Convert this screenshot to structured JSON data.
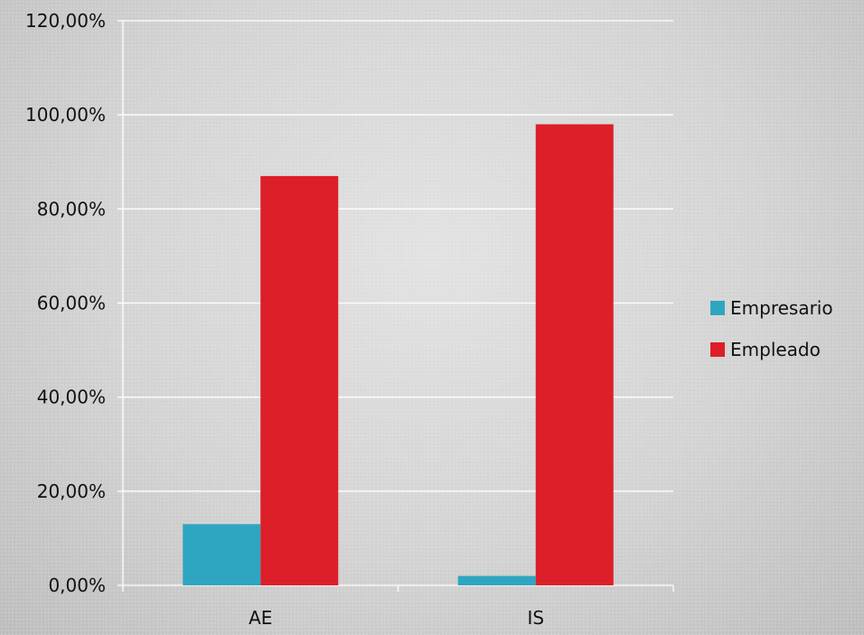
{
  "chart_data": {
    "type": "bar",
    "categories": [
      "AE",
      "IS"
    ],
    "series": [
      {
        "name": "Empresario",
        "values": [
          13.0,
          2.0
        ],
        "color": "#2ea6c2"
      },
      {
        "name": "Empleado",
        "values": [
          87.0,
          98.0
        ],
        "color": "#dc1f28"
      }
    ],
    "ylim": [
      0,
      120
    ],
    "yticks": [
      0,
      20,
      40,
      60,
      80,
      100,
      120
    ],
    "ytick_labels": [
      "0,00%",
      "20,00%",
      "40,00%",
      "60,00%",
      "80,00%",
      "100,00%",
      "120,00%"
    ],
    "grid": true,
    "legend_position": "right",
    "title": "",
    "xlabel": "",
    "ylabel": ""
  }
}
